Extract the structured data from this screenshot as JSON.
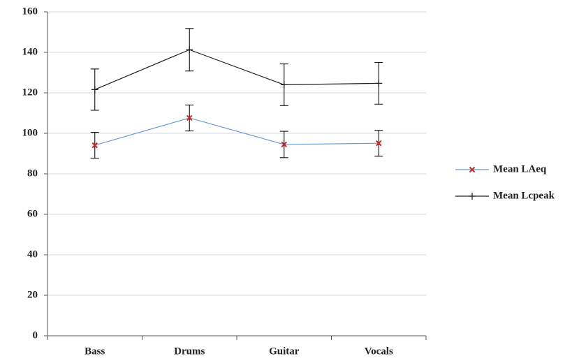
{
  "chart_data": {
    "type": "line",
    "categories": [
      "Bass",
      "Drums",
      "Guitar",
      "Vocals"
    ],
    "series": [
      {
        "name": "Mean LAeq",
        "color": "#6a9ad0",
        "marker_color": "#c0282a",
        "marker": "x",
        "values": [
          94.1,
          107.6,
          94.5,
          95.1
        ],
        "errors": [
          6.4,
          6.4,
          6.5,
          6.4
        ]
      },
      {
        "name": "Mean Lcpeak",
        "color": "#222222",
        "marker_color": "#222222",
        "marker": "+",
        "values": [
          121.6,
          141.3,
          124.0,
          124.7
        ],
        "errors": [
          10.2,
          10.5,
          10.3,
          10.3
        ]
      }
    ],
    "ylim": [
      0,
      160
    ],
    "yticks": [
      0,
      20,
      40,
      60,
      80,
      100,
      120,
      140,
      160
    ],
    "grid": true,
    "legend": "right"
  }
}
